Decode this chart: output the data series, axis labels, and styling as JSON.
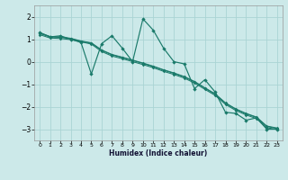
{
  "title": "",
  "xlabel": "Humidex (Indice chaleur)",
  "bg_color": "#cce9e9",
  "grid_color": "#aad4d4",
  "line_color": "#1a7a6a",
  "xlim": [
    -0.5,
    23.5
  ],
  "ylim": [
    -3.5,
    2.5
  ],
  "xticks": [
    0,
    1,
    2,
    3,
    4,
    5,
    6,
    7,
    8,
    9,
    10,
    11,
    12,
    13,
    14,
    15,
    16,
    17,
    18,
    19,
    20,
    21,
    22,
    23
  ],
  "yticks": [
    -3,
    -2,
    -1,
    0,
    1,
    2
  ],
  "line1_x": [
    0,
    1,
    2,
    3,
    4,
    5,
    6,
    7,
    8,
    9,
    10,
    11,
    12,
    13,
    14,
    15,
    16,
    17,
    18,
    19,
    20,
    21,
    22,
    23
  ],
  "line1_y": [
    1.3,
    1.1,
    1.15,
    1.0,
    0.85,
    -0.55,
    0.8,
    1.15,
    0.6,
    0.0,
    1.9,
    1.4,
    0.6,
    0.0,
    -0.1,
    -1.2,
    -0.8,
    -1.35,
    -2.25,
    -2.3,
    -2.6,
    -2.5,
    -3.0,
    -3.0
  ],
  "line2_x": [
    0,
    1,
    2,
    3,
    4,
    5,
    6,
    7,
    8,
    9,
    10,
    11,
    12,
    13,
    14,
    15,
    16,
    17,
    18,
    19,
    20,
    21,
    22,
    23
  ],
  "line2_y": [
    1.25,
    1.1,
    1.08,
    1.02,
    0.9,
    0.82,
    0.5,
    0.3,
    0.18,
    0.05,
    -0.08,
    -0.22,
    -0.38,
    -0.52,
    -0.68,
    -0.9,
    -1.18,
    -1.45,
    -1.85,
    -2.12,
    -2.32,
    -2.48,
    -2.88,
    -2.97
  ],
  "line3_x": [
    0,
    1,
    2,
    3,
    4,
    5,
    6,
    7,
    8,
    9,
    10,
    11,
    12,
    13,
    14,
    15,
    16,
    17,
    18,
    19,
    20,
    21,
    22,
    23
  ],
  "line3_y": [
    1.2,
    1.05,
    1.03,
    0.98,
    0.88,
    0.78,
    0.45,
    0.25,
    0.13,
    0.0,
    -0.13,
    -0.27,
    -0.43,
    -0.57,
    -0.73,
    -0.95,
    -1.23,
    -1.5,
    -1.9,
    -2.17,
    -2.37,
    -2.53,
    -2.93,
    -3.02
  ],
  "line4_x": [
    0,
    1,
    2,
    3,
    4,
    5,
    6,
    7,
    8,
    9,
    10,
    11,
    12,
    13,
    14,
    15,
    16,
    17,
    18,
    19,
    20,
    21,
    22,
    23
  ],
  "line4_y": [
    1.28,
    1.12,
    1.1,
    1.04,
    0.92,
    0.84,
    0.52,
    0.32,
    0.2,
    0.07,
    -0.06,
    -0.2,
    -0.36,
    -0.5,
    -0.66,
    -0.88,
    -1.16,
    -1.43,
    -1.83,
    -2.1,
    -2.3,
    -2.46,
    -2.86,
    -2.95
  ]
}
